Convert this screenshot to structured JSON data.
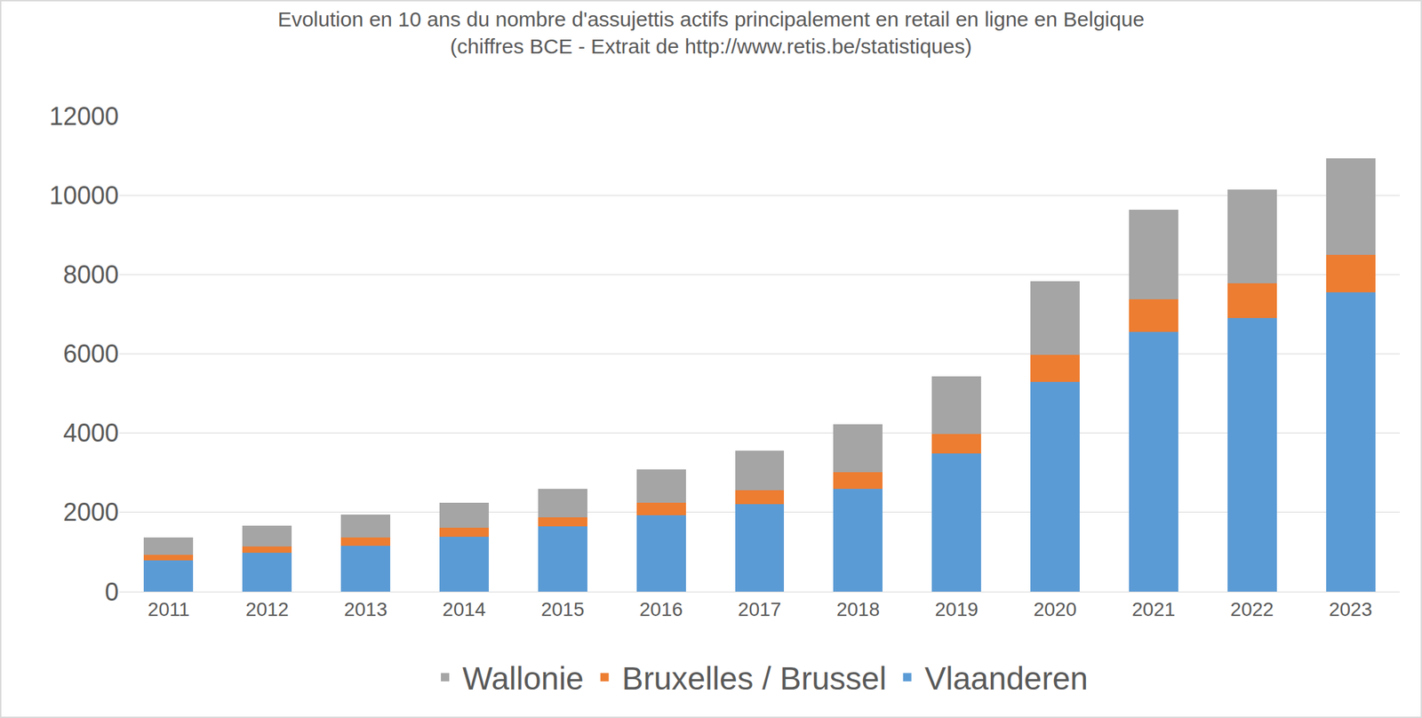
{
  "chart_data": {
    "type": "bar",
    "title": "Evolution en 10 ans du nombre d'assujettis actifs principalement en retail en ligne en Belgique",
    "subtitle": "(chiffres BCE - Extrait de http://www.retis.be/statistiques)",
    "categories": [
      "2011",
      "2012",
      "2013",
      "2014",
      "2015",
      "2016",
      "2017",
      "2018",
      "2019",
      "2020",
      "2021",
      "2022",
      "2023"
    ],
    "series": [
      {
        "name": "Vlaanderen",
        "color": "#5b9bd5",
        "values": [
          780,
          980,
          1160,
          1390,
          1640,
          1920,
          2210,
          2600,
          3490,
          5290,
          6550,
          6910,
          7550
        ]
      },
      {
        "name": "Bruxelles / Brussel",
        "color": "#ed7d31",
        "values": [
          155,
          160,
          210,
          230,
          230,
          320,
          340,
          410,
          480,
          690,
          820,
          870,
          940
        ]
      },
      {
        "name": "Wallonie",
        "color": "#a5a5a5",
        "values": [
          435,
          525,
          570,
          615,
          730,
          840,
          1010,
          1210,
          1460,
          1845,
          2260,
          2370,
          2440
        ]
      }
    ],
    "stacked": true,
    "ylim": [
      0,
      12000
    ],
    "yticks": [
      0,
      2000,
      4000,
      6000,
      8000,
      10000,
      12000
    ],
    "grid": true,
    "legend": "bottom"
  }
}
